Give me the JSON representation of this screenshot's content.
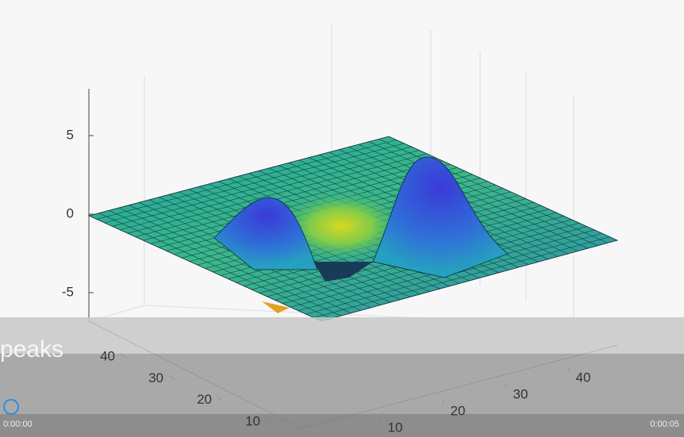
{
  "player": {
    "caption": "peaks",
    "time_current": "0:00:00",
    "time_total": "0:00:05"
  },
  "plot": {
    "zticks": [
      5,
      0,
      -5
    ],
    "yticks": [
      10,
      20,
      30,
      40
    ],
    "xticks": [
      10,
      20,
      30,
      40
    ]
  }
}
